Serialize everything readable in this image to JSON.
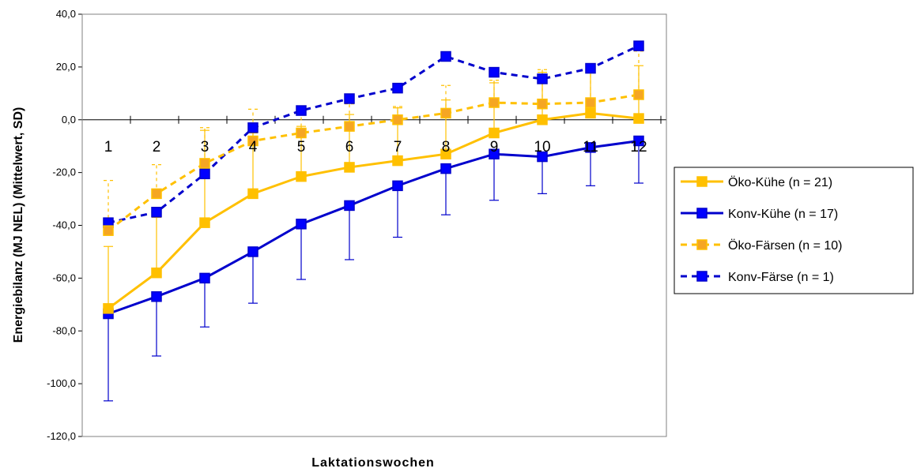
{
  "chart_data": {
    "type": "line",
    "title": "",
    "xlabel": "Laktationswochen",
    "ylabel": "Energiebilanz (MJ NEL) (Mittelwert, SD)",
    "categories": [
      "1",
      "2",
      "3",
      "4",
      "5",
      "6",
      "7",
      "8",
      "9",
      "10",
      "11",
      "12"
    ],
    "ylim": [
      -120,
      40
    ],
    "yticks": [
      40,
      20,
      0,
      -20,
      -40,
      -60,
      -80,
      -100,
      -120
    ],
    "ytick_labels": [
      "40,0",
      "20,0",
      "0,0",
      "-20,0",
      "-40,0",
      "-60,0",
      "-80,0",
      "-100,0",
      "-120,0"
    ],
    "grid": false,
    "legend_position": "right",
    "series": [
      {
        "name": "Öko-Kühe (n = 21)",
        "color": "#FFC000",
        "line_style": "solid",
        "marker_fill": "#FFC000",
        "values": [
          -71.5,
          -58,
          -39,
          -28,
          -21.5,
          -18,
          -15.5,
          -13,
          -5,
          0,
          2.5,
          0.5
        ],
        "sd_upper": [
          -48,
          -37,
          -4,
          -5,
          -2.5,
          2,
          4.5,
          7.5,
          14,
          18,
          19,
          20.5
        ]
      },
      {
        "name": "Konv-Kühe (n = 17)",
        "color": "#0000CC",
        "line_style": "solid",
        "marker_fill": "#0000FF",
        "values": [
          -73.5,
          -67,
          -60,
          -50,
          -39.5,
          -32.5,
          -25,
          -18.5,
          -13,
          -14,
          -10.5,
          -8
        ],
        "sd_lower": [
          -106.5,
          -89.5,
          -78.5,
          -69.5,
          -60.5,
          -53,
          -44.5,
          -36,
          -30.5,
          -28,
          -25,
          -24
        ]
      },
      {
        "name": "Öko-Färsen (n = 10)",
        "color": "#FFC000",
        "line_style": "dashed",
        "marker_fill": "#F5A623",
        "values": [
          -42,
          -28,
          -16.5,
          -8,
          -5,
          -2.5,
          0,
          2.5,
          6.5,
          6,
          6.5,
          9.5
        ],
        "sd_upper": [
          -23,
          -17,
          -3,
          4,
          4.5,
          6,
          5,
          13,
          15,
          19,
          19.5,
          26
        ]
      },
      {
        "name": "Konv-Färse (n = 1)",
        "color": "#0000CC",
        "line_style": "dashed",
        "marker_fill": "#0000FF",
        "values": [
          -39,
          -35,
          -20.5,
          -3,
          3.5,
          8,
          12,
          24,
          18,
          15.5,
          19.5,
          28
        ]
      }
    ]
  }
}
